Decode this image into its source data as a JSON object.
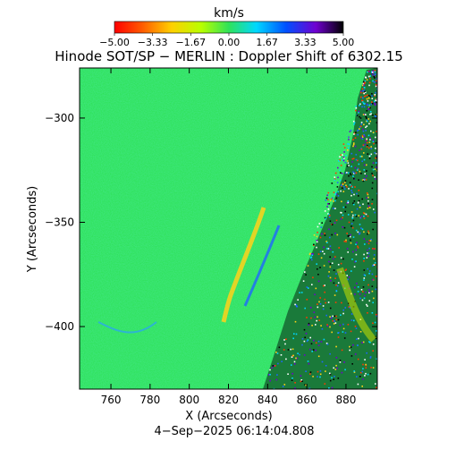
{
  "colorbar": {
    "unit": "km/s",
    "ticks": [
      "−5.00",
      "−3.33",
      "−1.67",
      "0.00",
      "1.67",
      "3.33",
      "5.00"
    ],
    "range": [
      -5.0,
      5.0
    ]
  },
  "title": "Hinode SOT/SP − MERLIN : Doppler Shift of 6302.15",
  "axes": {
    "x": {
      "label": "X (Arcseconds)",
      "range": [
        744,
        896
      ],
      "ticks": [
        760,
        780,
        800,
        820,
        840,
        860,
        880
      ],
      "tick_labels": [
        "760",
        "780",
        "800",
        "820",
        "840",
        "860",
        "880"
      ]
    },
    "y": {
      "label": "Y (Arcseconds)",
      "range": [
        -430,
        -276
      ],
      "ticks": [
        -300,
        -350,
        -400
      ],
      "tick_labels": [
        "−300",
        "−350",
        "−400"
      ]
    }
  },
  "timestamp": "4−Sep−2025 06:14:04.808",
  "colors": {
    "background_field": "#2fe25a",
    "limb_noise_dark": "#000000",
    "redshift_streak": "#ffd21a",
    "blueshift_streak": "#1f66ff"
  }
}
